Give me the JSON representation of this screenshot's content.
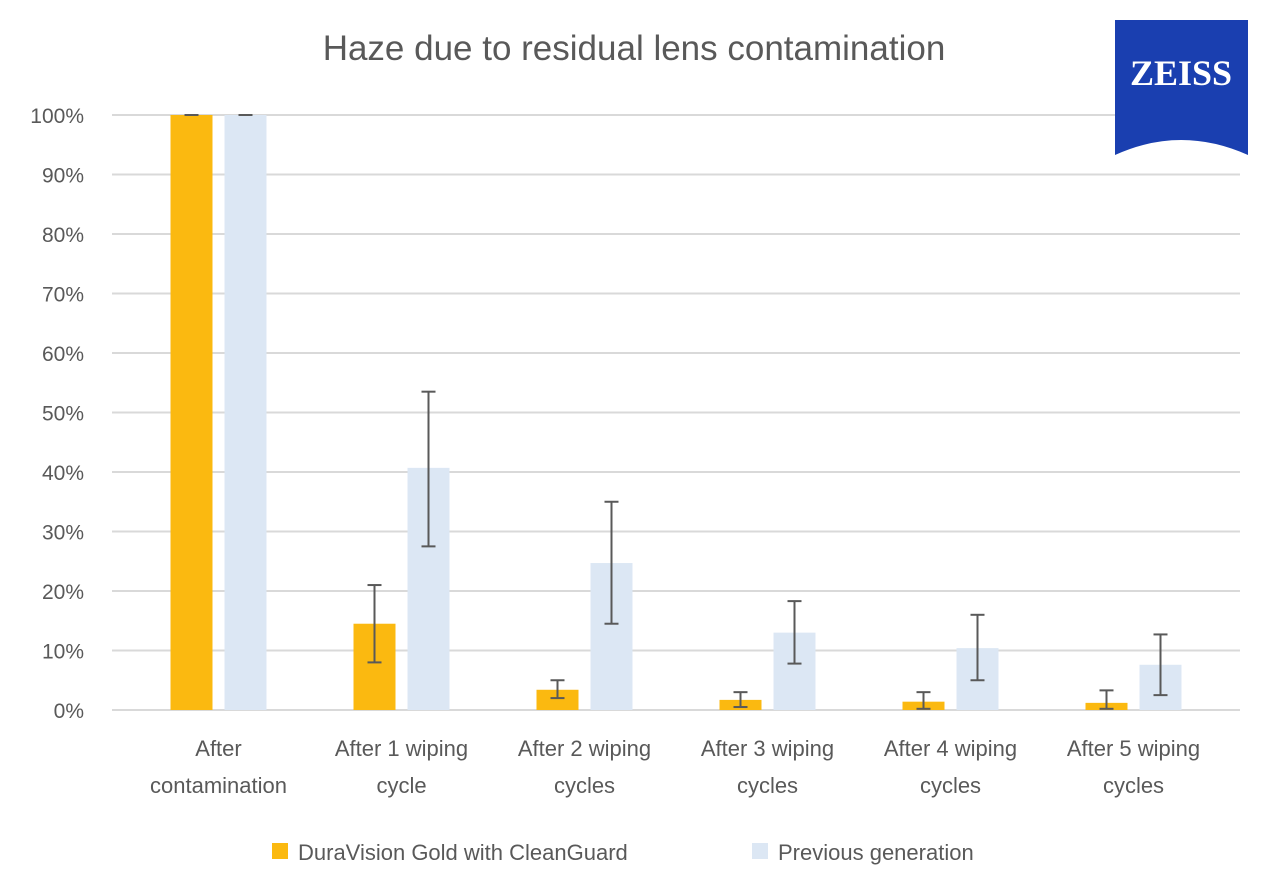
{
  "chart_data": {
    "type": "bar",
    "title": "Haze due to residual lens contamination",
    "xlabel": "",
    "ylabel": "",
    "ylim": [
      0,
      100
    ],
    "yticks": [
      "0%",
      "10%",
      "20%",
      "30%",
      "40%",
      "50%",
      "60%",
      "70%",
      "80%",
      "90%",
      "100%"
    ],
    "grid": true,
    "legend_position": "bottom",
    "categories": [
      [
        "After",
        "contamination"
      ],
      [
        "After 1 wiping",
        "cycle"
      ],
      [
        "After 2 wiping",
        "cycles"
      ],
      [
        "After 3 wiping",
        "cycles"
      ],
      [
        "After 4 wiping",
        "cycles"
      ],
      [
        "After 5 wiping",
        "cycles"
      ]
    ],
    "series": [
      {
        "name": "DuraVision Gold with CleanGuard",
        "color": "#FBB910",
        "values": [
          100,
          14.5,
          3.4,
          1.7,
          1.4,
          1.2
        ],
        "error_low": [
          100,
          8,
          2,
          0.5,
          0.2,
          0.2
        ],
        "error_high": [
          100,
          21,
          5,
          3,
          3,
          3.3
        ]
      },
      {
        "name": "Previous generation",
        "color": "#DCE7F4",
        "values": [
          100,
          40.7,
          24.7,
          13,
          10.4,
          7.6
        ],
        "error_low": [
          100,
          27.5,
          14.5,
          7.8,
          5,
          2.5
        ],
        "error_high": [
          100,
          53.5,
          35,
          18.3,
          16,
          12.7
        ]
      }
    ]
  },
  "logo": {
    "text": "ZEISS",
    "color": "#1A3FB0"
  }
}
